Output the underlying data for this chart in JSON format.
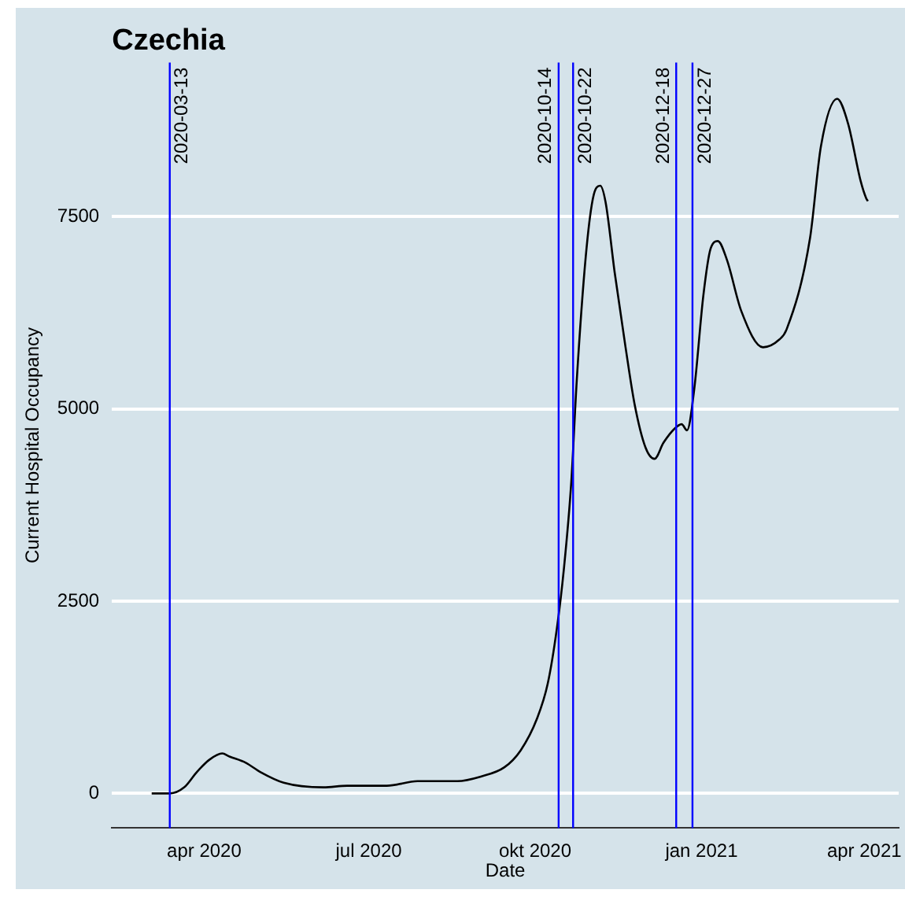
{
  "chart_data": {
    "type": "line",
    "title": "Czechia",
    "xlabel": "Date",
    "ylabel": "Current Hospital Occupancy",
    "xlim": [
      "2020-02-10",
      "2021-04-20"
    ],
    "ylim": [
      -450,
      9500
    ],
    "xticks": [
      {
        "value": "2020-04-01",
        "label": "apr 2020"
      },
      {
        "value": "2020-07-01",
        "label": "jul 2020"
      },
      {
        "value": "2020-10-01",
        "label": "okt 2020"
      },
      {
        "value": "2021-01-01",
        "label": "jan 2021"
      },
      {
        "value": "2021-04-01",
        "label": "apr 2021"
      }
    ],
    "yticks": [
      0,
      2500,
      5000,
      7500
    ],
    "grid": "y",
    "legend": false,
    "marker": "none",
    "line_style": "solid",
    "series": [
      {
        "color": "#000000",
        "x": [
          "2020-03-03",
          "2020-03-13",
          "2020-03-21",
          "2020-03-28",
          "2020-04-04",
          "2020-04-11",
          "2020-04-15",
          "2020-04-24",
          "2020-05-02",
          "2020-05-15",
          "2020-06-06",
          "2020-06-19",
          "2020-07-11",
          "2020-07-28",
          "2020-08-19",
          "2020-09-01",
          "2020-09-14",
          "2020-09-23",
          "2020-10-02",
          "2020-10-08",
          "2020-10-13",
          "2020-10-17",
          "2020-10-21",
          "2020-10-24",
          "2020-10-29",
          "2020-11-02",
          "2020-11-06",
          "2020-11-09",
          "2020-11-14",
          "2020-11-20",
          "2020-11-25",
          "2020-12-01",
          "2020-12-06",
          "2020-12-11",
          "2020-12-17",
          "2020-12-21",
          "2020-12-24",
          "2020-12-28",
          "2021-01-02",
          "2021-01-06",
          "2021-01-10",
          "2021-01-15",
          "2021-01-23",
          "2021-02-04",
          "2021-02-13",
          "2021-02-17",
          "2021-03-02",
          "2021-03-08",
          "2021-03-17",
          "2021-03-23",
          "2021-03-30",
          "2021-04-02",
          "2021-04-03"
        ],
        "values": [
          0,
          0,
          80,
          280,
          440,
          520,
          480,
          400,
          280,
          140,
          80,
          100,
          100,
          160,
          160,
          220,
          340,
          560,
          970,
          1430,
          2140,
          2940,
          4050,
          5360,
          6980,
          7740,
          7900,
          7680,
          6770,
          5800,
          5060,
          4500,
          4350,
          4560,
          4740,
          4800,
          4720,
          5260,
          6470,
          7080,
          7180,
          6940,
          6270,
          5800,
          5900,
          6030,
          7220,
          8410,
          9030,
          8710,
          7960,
          7740,
          7700
        ]
      }
    ],
    "ref_lines": [
      {
        "axis": "x",
        "value": "2020-03-13",
        "label": "2020-03-13",
        "color": "#0000ff"
      },
      {
        "axis": "x",
        "value": "2020-10-14",
        "label": "2020-10-14",
        "color": "#0000ff"
      },
      {
        "axis": "x",
        "value": "2020-10-22",
        "label": "2020-10-22",
        "color": "#0000ff"
      },
      {
        "axis": "x",
        "value": "2020-12-18",
        "label": "2020-12-18",
        "color": "#0000ff"
      },
      {
        "axis": "x",
        "value": "2020-12-27",
        "label": "2020-12-27",
        "color": "#0000ff"
      }
    ]
  }
}
